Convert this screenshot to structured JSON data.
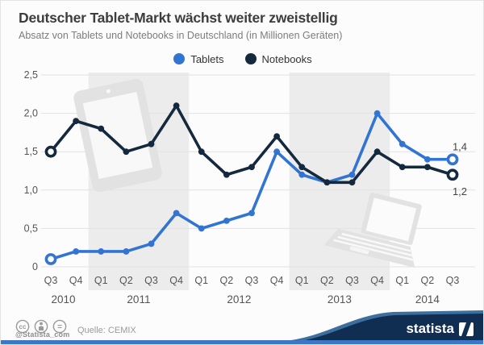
{
  "header": {
    "title": "Deutscher Tablet-Markt wächst weiter zweistellig",
    "subtitle": "Absatz von Tablets und Notebooks in Deutschland (in Millionen Geräten)"
  },
  "legend": [
    {
      "label": "Tablets",
      "color": "#3274d2"
    },
    {
      "label": "Notebooks",
      "color": "#15293e"
    }
  ],
  "chart_data": {
    "type": "line",
    "title": "Deutscher Tablet-Markt wächst weiter zweistellig",
    "subtitle": "Absatz von Tablets und Notebooks in Deutschland (in Millionen Geräten)",
    "unit": "Millionen Geräte",
    "x_quarters": [
      "Q3",
      "Q4",
      "Q1",
      "Q2",
      "Q3",
      "Q4",
      "Q1",
      "Q2",
      "Q3",
      "Q4",
      "Q1",
      "Q2",
      "Q3",
      "Q4",
      "Q1",
      "Q2",
      "Q3"
    ],
    "year_groups": [
      {
        "label": "2010",
        "from": 0,
        "to": 1
      },
      {
        "label": "2011",
        "from": 2,
        "to": 5
      },
      {
        "label": "2012",
        "from": 6,
        "to": 9
      },
      {
        "label": "2013",
        "from": 10,
        "to": 13
      },
      {
        "label": "2014",
        "from": 14,
        "to": 16
      }
    ],
    "series": [
      {
        "name": "Tablets",
        "color": "#3274d2",
        "values": [
          0.1,
          0.2,
          0.2,
          0.2,
          0.3,
          0.7,
          0.5,
          0.6,
          0.7,
          1.5,
          1.2,
          1.1,
          1.2,
          2.0,
          1.6,
          1.4,
          1.4
        ],
        "end_label": "1,4",
        "end_label_dy": -11
      },
      {
        "name": "Notebooks",
        "color": "#15293e",
        "values": [
          1.5,
          1.9,
          1.8,
          1.5,
          1.6,
          2.1,
          1.5,
          1.2,
          1.3,
          1.7,
          1.3,
          1.1,
          1.1,
          1.5,
          1.3,
          1.3,
          1.2
        ],
        "end_label": "1,2",
        "end_label_dy": 25
      }
    ],
    "ylim": [
      0,
      2.5
    ],
    "yticks": [
      {
        "value": 2.5,
        "label": "2,5"
      },
      {
        "value": 2.0,
        "label": "2,0"
      },
      {
        "value": 1.5,
        "label": "1,5"
      },
      {
        "value": 1.0,
        "label": "1,0"
      },
      {
        "value": 0.5,
        "label": "0,5"
      },
      {
        "value": 0.0,
        "label": "0"
      }
    ],
    "grid": true,
    "legend_position": "top-center",
    "highlight_bands": [
      {
        "from": 2,
        "to": 5
      },
      {
        "from": 10,
        "to": 13
      }
    ]
  },
  "footer": {
    "license_icons": [
      "cc-icon",
      "attribution-icon",
      "no-derivatives-icon"
    ],
    "handle": "@Statista_com",
    "source": "Quelle: CEMIX",
    "brand": "statista"
  },
  "colors": {
    "band": "#ececec",
    "grid": "#e2e2e2",
    "axis_text": "#555555",
    "end_label": "#444444",
    "bottom_strip": "#3b76c8",
    "wave_dark": "#0f2e52",
    "wave_light": "#3d6f9e"
  }
}
